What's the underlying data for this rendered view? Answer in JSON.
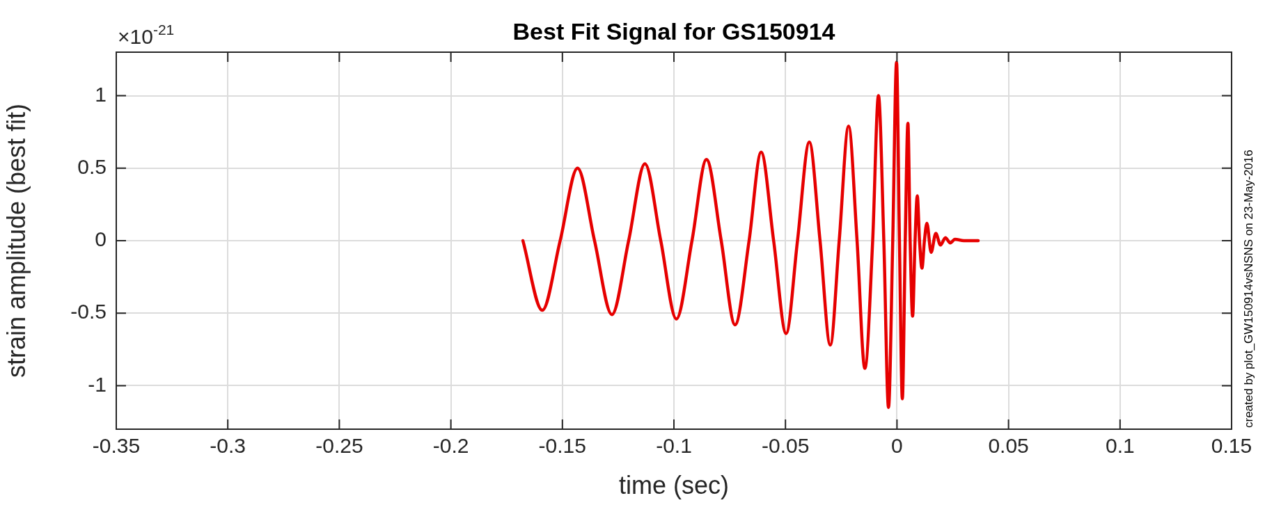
{
  "chart_data": {
    "type": "line",
    "title": "Best Fit Signal for GS150914",
    "xlabel": "time (sec)",
    "ylabel": "strain amplitude (best fit)",
    "annotations": [
      "×10$^{-21}$",
      "created by plot_GW150914vsNSNS on 23-May-2016"
    ],
    "x": [
      -0.1677,
      -0.159,
      -0.151,
      -0.1432,
      -0.1356,
      -0.1278,
      -0.1203,
      -0.113,
      -0.1059,
      -0.0989,
      -0.0919,
      -0.0854,
      -0.0788,
      -0.0726,
      -0.0663,
      -0.0609,
      -0.0553,
      -0.0497,
      -0.0446,
      -0.0393,
      -0.0345,
      -0.0299,
      -0.0259,
      -0.0217,
      -0.0179,
      -0.0144,
      -0.0109,
      -0.0083,
      -0.0059,
      -0.0038,
      -0.0019,
      -0.0002,
      0.0011,
      0.0024,
      0.0037,
      0.0049,
      0.0059,
      0.007,
      0.0081,
      0.0091,
      0.0101,
      0.0112,
      0.0123,
      0.0134,
      0.0153,
      0.0174,
      0.0195,
      0.0217,
      0.0239,
      0.026,
      0.03,
      0.0364
    ],
    "series": [
      {
        "color": "#e60000",
        "values": [
          0,
          -0.48,
          0,
          0.5,
          0,
          -0.51,
          0,
          0.53,
          0,
          -0.54,
          0,
          0.56,
          0,
          -0.58,
          0,
          0.61,
          0,
          -0.64,
          0,
          0.68,
          0,
          -0.72,
          0,
          0.79,
          0,
          -0.88,
          0,
          1.0,
          0,
          -1.15,
          0,
          1.23,
          0,
          -1.09,
          0,
          0.81,
          0,
          -0.52,
          0,
          0.31,
          0,
          -0.19,
          0,
          0.12,
          -0.08,
          0.05,
          -0.03,
          0.02,
          -0.015,
          0.01,
          0,
          0
        ]
      }
    ],
    "xlim": [
      -0.35,
      0.15
    ],
    "xticks": [
      -0.35,
      -0.3,
      -0.25,
      -0.2,
      -0.15,
      -0.1,
      -0.05,
      0,
      0.05,
      0.1,
      0.15
    ],
    "ylim": [
      -1.3,
      1.3
    ],
    "yticks": [
      -1,
      -0.5,
      0,
      0.5,
      1
    ],
    "grid": true,
    "legend": false,
    "marker": "none",
    "line_style": "solid"
  }
}
